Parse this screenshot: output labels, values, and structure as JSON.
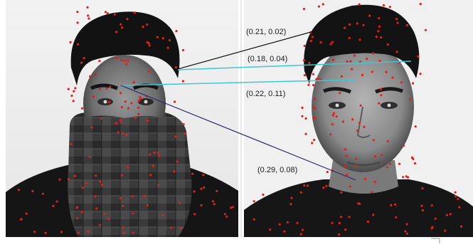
{
  "figure": {
    "panels": [
      {
        "name": "left-photo",
        "subject": "occluded face with scarf"
      },
      {
        "name": "right-photo",
        "subject": "unoccluded face"
      }
    ],
    "keypoint_color": "#e02020",
    "match_lines": [
      {
        "label": "(0.21, 0.02)",
        "color": "#111111"
      },
      {
        "label": "(0.18, 0.04)",
        "color": "#3fc7d6"
      },
      {
        "label": "(0.22, 0.11)",
        "color": "#3fc7d6"
      },
      {
        "label": "(0.29, 0.08)",
        "color": "#2a2a6a"
      }
    ]
  }
}
